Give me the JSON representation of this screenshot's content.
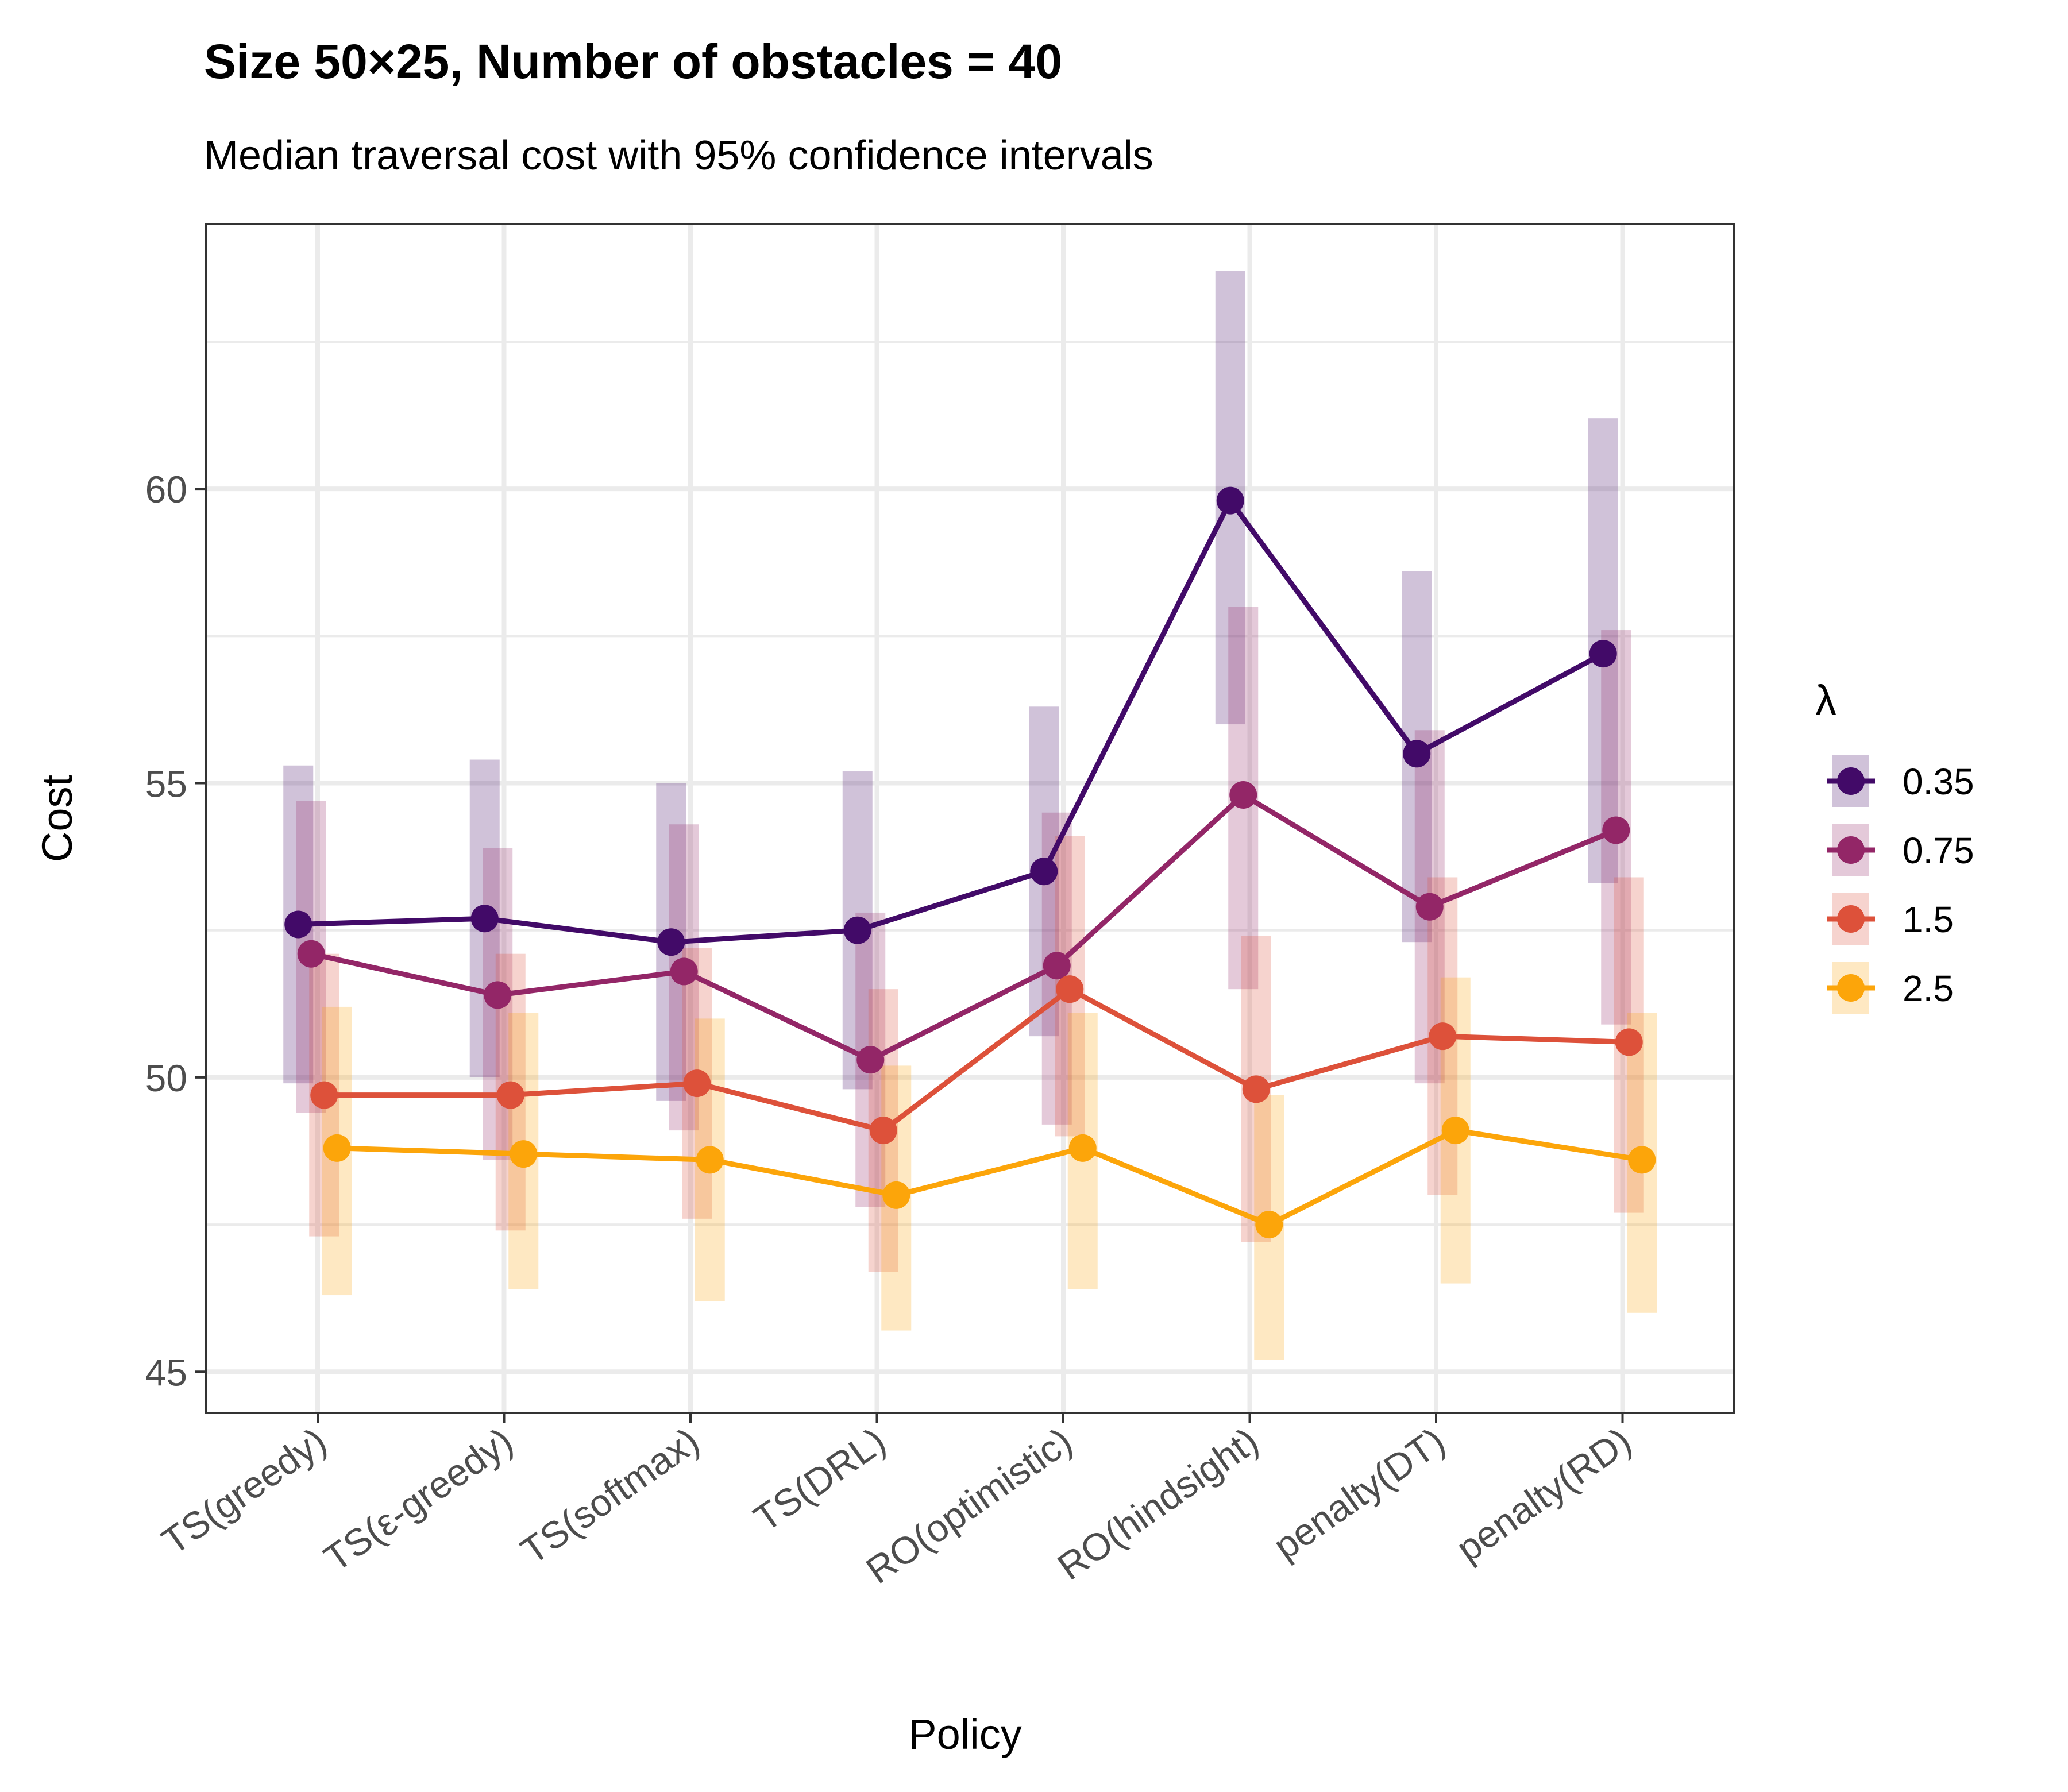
{
  "chart_data": {
    "type": "line",
    "title": "Size 50×25, Number of obstacles = 40",
    "subtitle": "Median traversal cost with 95% confidence intervals",
    "xlabel": "Policy",
    "ylabel": "Cost",
    "ylim": [
      44.3,
      64.5
    ],
    "yticks": [
      45,
      50,
      55,
      60
    ],
    "ytick_labels": [
      "45",
      "50",
      "55",
      "60"
    ],
    "categories": [
      "TS(greedy)",
      "TS(ε-greedy)",
      "TS(softmax)",
      "TS(DRL)",
      "RO(optimistic)",
      "RO(hindsight)",
      "penalty(DT)",
      "penalty(RD)"
    ],
    "legend": {
      "title": "λ",
      "position": "right"
    },
    "grid": true,
    "series": [
      {
        "name": "0.35",
        "color": "#420a68",
        "values": [
          52.6,
          52.7,
          52.3,
          52.5,
          53.5,
          59.8,
          55.5,
          57.2
        ],
        "ci_low": [
          49.9,
          50.0,
          49.6,
          49.8,
          50.7,
          56.0,
          52.3,
          53.3
        ],
        "ci_high": [
          55.3,
          55.4,
          55.0,
          55.2,
          56.3,
          63.7,
          58.6,
          61.2
        ]
      },
      {
        "name": "0.75",
        "color": "#932667",
        "values": [
          52.1,
          51.4,
          51.8,
          50.3,
          51.9,
          54.8,
          52.9,
          54.2
        ],
        "ci_low": [
          49.4,
          48.6,
          49.1,
          47.8,
          49.2,
          51.5,
          49.9,
          50.9
        ],
        "ci_high": [
          54.7,
          53.9,
          54.3,
          52.8,
          54.5,
          58.0,
          55.9,
          57.6
        ]
      },
      {
        "name": "1.5",
        "color": "#dd513a",
        "values": [
          49.7,
          49.7,
          49.9,
          49.1,
          51.5,
          49.8,
          50.7,
          50.6
        ],
        "ci_low": [
          47.3,
          47.4,
          47.6,
          46.7,
          49.0,
          47.2,
          48.0,
          47.7
        ],
        "ci_high": [
          52.1,
          52.1,
          52.2,
          51.5,
          54.1,
          52.4,
          53.4,
          53.4
        ]
      },
      {
        "name": "2.5",
        "color": "#fca50a",
        "values": [
          48.8,
          48.7,
          48.6,
          48.0,
          48.8,
          47.5,
          49.1,
          48.6
        ],
        "ci_low": [
          46.3,
          46.4,
          46.2,
          45.7,
          46.4,
          45.2,
          46.5,
          46.0
        ],
        "ci_high": [
          51.2,
          51.1,
          51.0,
          50.2,
          51.1,
          49.7,
          51.7,
          51.1
        ]
      }
    ]
  }
}
